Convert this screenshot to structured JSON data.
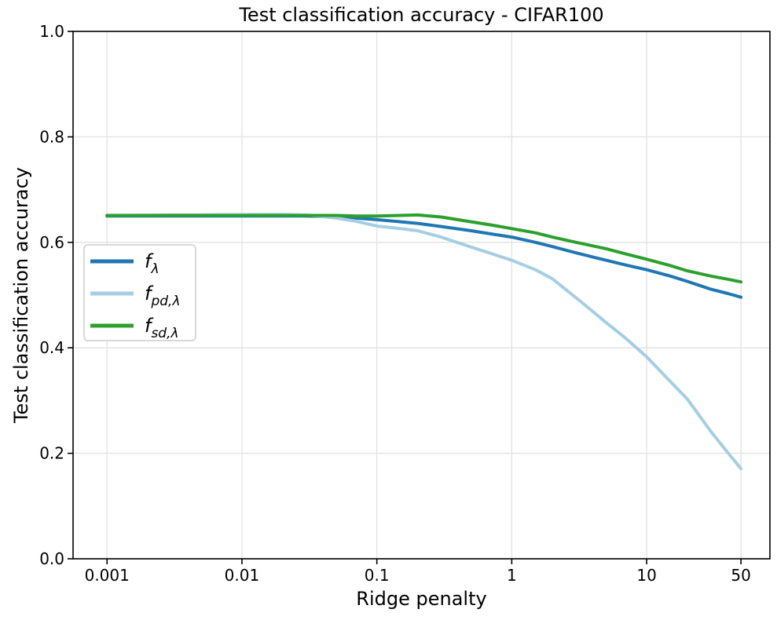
{
  "chart_data": {
    "type": "line",
    "title": "Test classification accuracy - CIFAR100",
    "xlabel": "Ridge penalty",
    "ylabel": "Test classification accuracy",
    "xscale": "log",
    "xlim": [
      0.00056,
      82
    ],
    "ylim": [
      0.0,
      1.0
    ],
    "grid": true,
    "legend_position": "upper left",
    "x_ticks": {
      "values": [
        0.001,
        0.01,
        0.1,
        1,
        10,
        50
      ],
      "labels": [
        "0.001",
        "0.01",
        "0.1",
        "1",
        "10",
        "50"
      ]
    },
    "y_ticks": {
      "values": [
        0.0,
        0.2,
        0.4,
        0.6,
        0.8,
        1.0
      ],
      "labels": [
        "0.0",
        "0.2",
        "0.4",
        "0.6",
        "0.8",
        "1.0"
      ]
    },
    "x": [
      0.001,
      0.002,
      0.003,
      0.005,
      0.007,
      0.01,
      0.015,
      0.02,
      0.03,
      0.05,
      0.07,
      0.1,
      0.15,
      0.2,
      0.3,
      0.5,
      0.7,
      1,
      1.5,
      2,
      3,
      5,
      7,
      10,
      15,
      20,
      30,
      40,
      50
    ],
    "series": [
      {
        "name": "f_lambda",
        "legend_main": "f",
        "legend_sub": "λ",
        "color": "#1f77b4",
        "values": [
          0.65,
          0.65,
          0.65,
          0.65,
          0.65,
          0.65,
          0.65,
          0.65,
          0.65,
          0.648,
          0.646,
          0.643,
          0.639,
          0.636,
          0.63,
          0.622,
          0.616,
          0.61,
          0.6,
          0.592,
          0.58,
          0.566,
          0.557,
          0.548,
          0.536,
          0.526,
          0.511,
          0.503,
          0.496
        ]
      },
      {
        "name": "f_pd_lambda",
        "legend_main": "f",
        "legend_sub": "pd,λ",
        "color": "#a6cee3",
        "values": [
          0.651,
          0.6515,
          0.652,
          0.652,
          0.6525,
          0.6525,
          0.653,
          0.653,
          0.652,
          0.646,
          0.64,
          0.631,
          0.626,
          0.622,
          0.61,
          0.591,
          0.579,
          0.566,
          0.548,
          0.531,
          0.495,
          0.448,
          0.418,
          0.383,
          0.336,
          0.303,
          0.241,
          0.201,
          0.171
        ]
      },
      {
        "name": "f_sd_lambda",
        "legend_main": "f",
        "legend_sub": "sd,λ",
        "color": "#2ca02c",
        "values": [
          0.651,
          0.651,
          0.651,
          0.651,
          0.651,
          0.651,
          0.651,
          0.651,
          0.651,
          0.651,
          0.65,
          0.65,
          0.651,
          0.652,
          0.648,
          0.639,
          0.633,
          0.626,
          0.618,
          0.61,
          0.6,
          0.588,
          0.578,
          0.568,
          0.556,
          0.546,
          0.536,
          0.53,
          0.525
        ]
      }
    ],
    "colors": {
      "grid": "#e3e3e3",
      "spine": "#000000",
      "text": "#000000",
      "background": "#ffffff",
      "legend_border": "#cccccc"
    }
  }
}
